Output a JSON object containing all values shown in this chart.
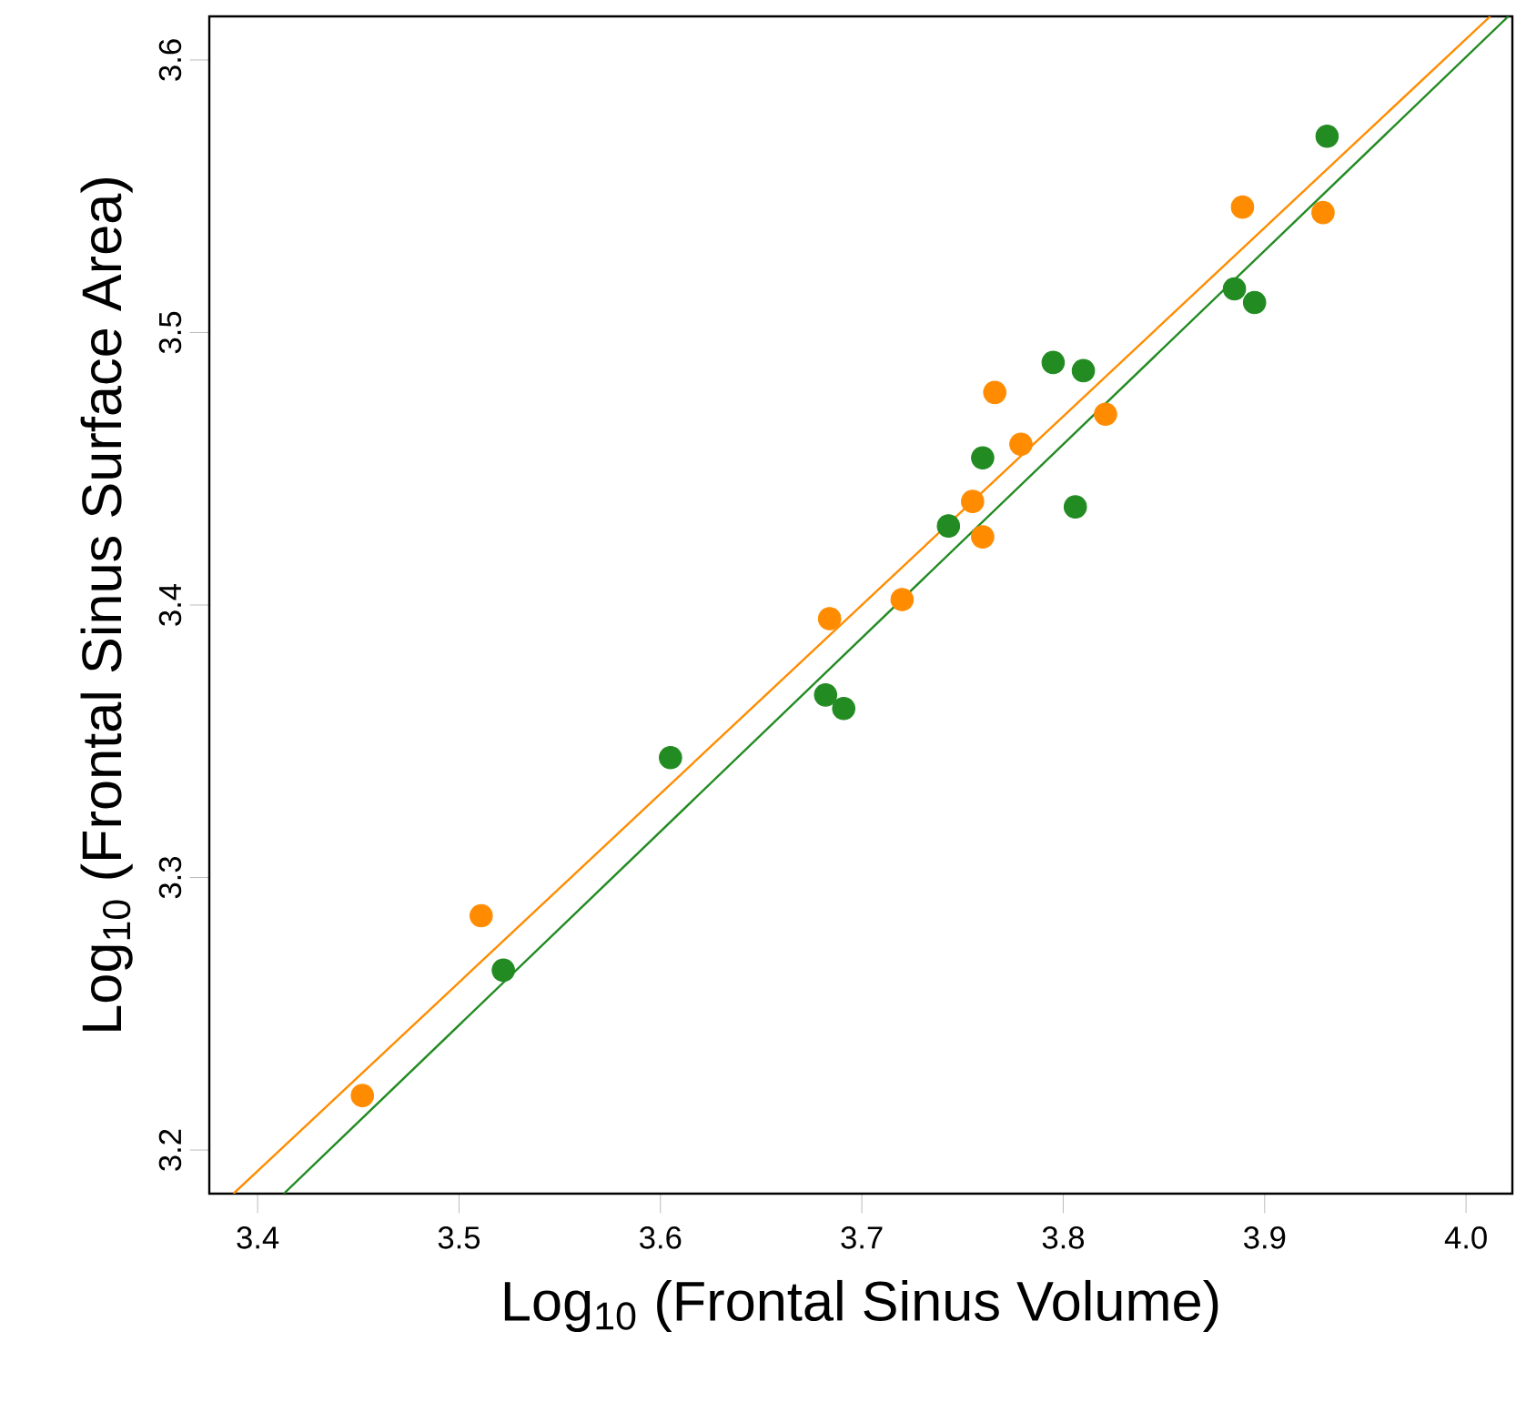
{
  "chart_data": {
    "type": "scatter",
    "xlabel": "Log$_{10}$ (Frontal Sinus Volume)",
    "ylabel": "Log$_{10}$ (Frontal Sinus Surface Area)",
    "xlim": [
      3.376,
      4.023
    ],
    "ylim": [
      3.184,
      3.616
    ],
    "xticks": [
      3.4,
      3.5,
      3.6,
      3.7,
      3.8,
      3.9,
      {
        "value": 4,
        "label": "4.0"
      }
    ],
    "yticks": [
      3.2,
      3.3,
      3.4,
      3.5,
      3.6
    ],
    "grid": false,
    "series": [
      {
        "marker": "circle",
        "color": "#ff8c00",
        "x": [
          3.452,
          3.511,
          3.684,
          3.72,
          3.755,
          3.76,
          3.766,
          3.779,
          3.821,
          3.889,
          3.929
        ],
        "values": [
          3.22,
          3.286,
          3.395,
          3.402,
          3.438,
          3.425,
          3.478,
          3.459,
          3.47,
          3.546,
          3.544
        ]
      },
      {
        "marker": "circle",
        "color": "#228b22",
        "x": [
          3.522,
          3.605,
          3.682,
          3.691,
          3.743,
          3.76,
          3.795,
          3.806,
          3.81,
          3.885,
          3.895,
          3.931
        ],
        "values": [
          3.266,
          3.344,
          3.367,
          3.362,
          3.429,
          3.454,
          3.489,
          3.436,
          3.486,
          3.516,
          3.511,
          3.572
        ]
      },
      {
        "type": "line",
        "marker": "none",
        "line_style": "solid",
        "color": "#ff8c00",
        "x": [
          3.388,
          4.012
        ],
        "values": [
          3.184,
          3.616
        ]
      },
      {
        "type": "line",
        "marker": "none",
        "line_style": "solid",
        "color": "#228b22",
        "x": [
          3.413,
          4.021
        ],
        "values": [
          3.184,
          3.616
        ]
      }
    ]
  }
}
